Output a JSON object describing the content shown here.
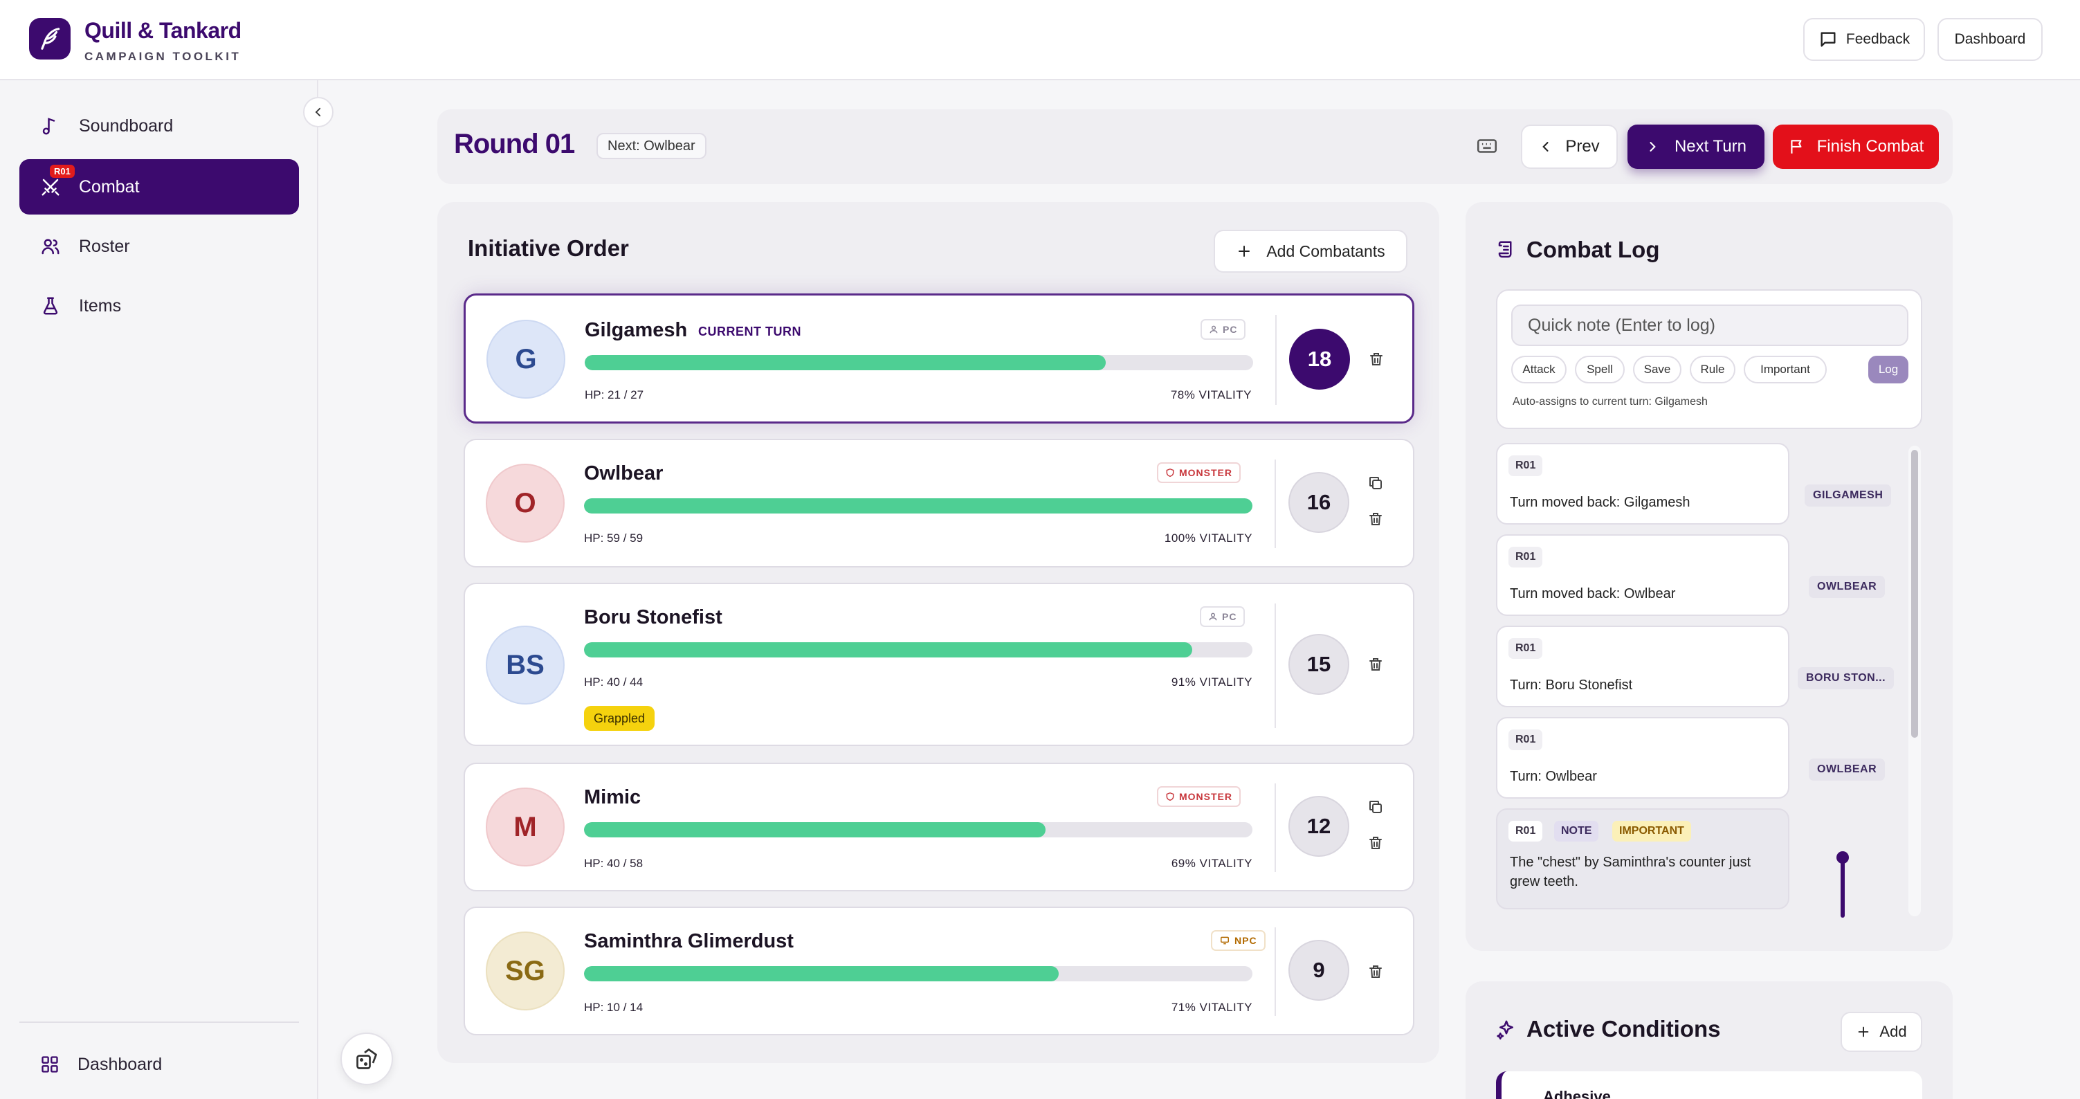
{
  "brand": {
    "name": "Quill & Tankard",
    "subtitle": "CAMPAIGN TOOLKIT"
  },
  "header": {
    "feedback_label": "Feedback",
    "dashboard_label": "Dashboard"
  },
  "sidebar": {
    "items": [
      {
        "label": "Soundboard",
        "icon": "music-note-icon"
      },
      {
        "label": "Combat",
        "icon": "crossed-swords-icon",
        "badge": "R01",
        "active": true
      },
      {
        "label": "Roster",
        "icon": "users-icon"
      },
      {
        "label": "Items",
        "icon": "flask-icon"
      }
    ],
    "bottom_label": "Dashboard"
  },
  "round": {
    "title": "Round 01",
    "next_label": "Next: Owlbear",
    "prev_label": "Prev",
    "next_turn_label": "Next Turn",
    "finish_label": "Finish Combat"
  },
  "initiative": {
    "title": "Initiative Order",
    "add_label": "Add Combatants",
    "current_turn_label": "CURRENT TURN",
    "combatants": [
      {
        "initials": "G",
        "name": "Gilgamesh",
        "type": "PC",
        "hp": "HP: 21 / 27",
        "vitality": "78% VITALITY",
        "hp_fraction": 0.78,
        "initiative": "18",
        "current": true
      },
      {
        "initials": "O",
        "name": "Owlbear",
        "type": "MONSTER",
        "hp": "HP: 59 / 59",
        "vitality": "100% VITALITY",
        "hp_fraction": 1.0,
        "initiative": "16"
      },
      {
        "initials": "BS",
        "name": "Boru Stonefist",
        "type": "PC",
        "hp": "HP: 40 / 44",
        "vitality": "91% VITALITY",
        "hp_fraction": 0.91,
        "initiative": "15",
        "condition": "Grappled"
      },
      {
        "initials": "M",
        "name": "Mimic",
        "type": "MONSTER",
        "hp": "HP: 40 / 58",
        "vitality": "69% VITALITY",
        "hp_fraction": 0.69,
        "initiative": "12"
      },
      {
        "initials": "SG",
        "name": "Saminthra Glimerdust",
        "type": "NPC",
        "hp": "HP: 10 / 14",
        "vitality": "71% VITALITY",
        "hp_fraction": 0.71,
        "initiative": "9"
      }
    ]
  },
  "combat_log": {
    "title": "Combat Log",
    "placeholder": "Quick note (Enter to log)",
    "chips": [
      "Attack",
      "Spell",
      "Save",
      "Rule",
      "Important"
    ],
    "submit_label": "Log",
    "hint": "Auto-assigns to current turn: Gilgamesh",
    "entries": [
      {
        "round": "R01",
        "text": "Turn moved back: Gilgamesh",
        "actor": "GILGAMESH"
      },
      {
        "round": "R01",
        "text": "Turn moved back: Owlbear",
        "actor": "OWLBEAR"
      },
      {
        "round": "R01",
        "text": "Turn: Boru Stonefist",
        "actor": "BORU STON..."
      },
      {
        "round": "R01",
        "text": "Turn: Owlbear",
        "actor": "OWLBEAR"
      },
      {
        "round": "R01",
        "note_tag": "NOTE",
        "important_tag": "IMPORTANT",
        "text": "The \"chest\" by Saminthra's counter just grew teeth."
      }
    ]
  },
  "conditions": {
    "title": "Active Conditions",
    "add_label": "Add",
    "first_item": "Adhesive"
  },
  "colors": {
    "brand": "#3c0a6e",
    "danger": "#e3101a",
    "hp": "#4ecf94",
    "condition": "#f5d20e"
  }
}
